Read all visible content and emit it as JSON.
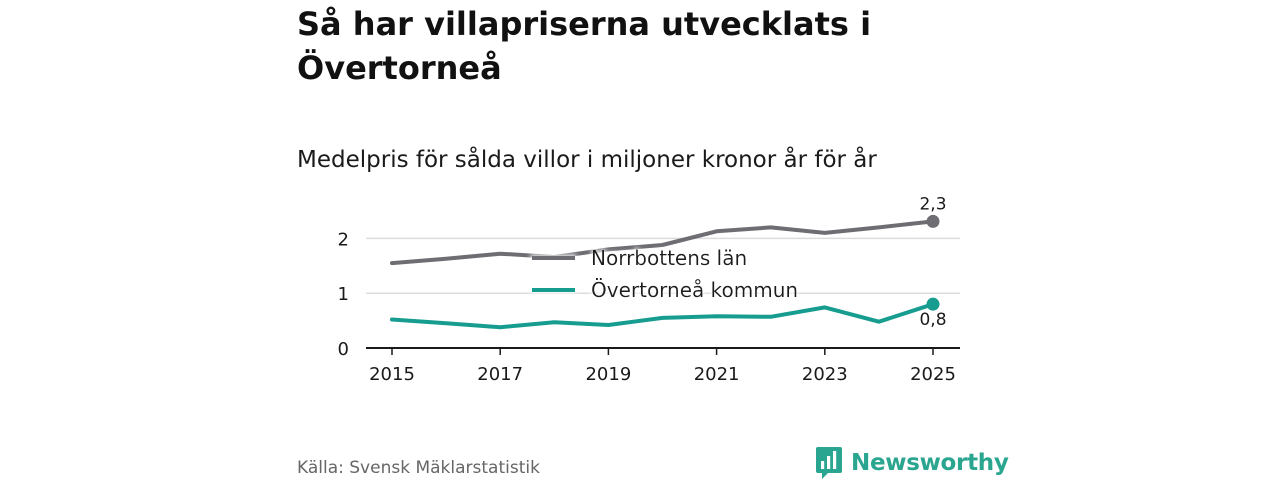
{
  "title": "Så har villapriserna utvecklats i Övertorneå",
  "subtitle": "Medelpris för sålda villor i miljoner kronor år för år",
  "source": "Källa: Svensk Mäklarstatistik",
  "brand": {
    "name": "Newsworthy",
    "icon": "newsworthy-logo-icon",
    "color": "#2aa58f"
  },
  "chart_data": {
    "type": "line",
    "x": [
      2015,
      2016,
      2017,
      2018,
      2019,
      2020,
      2021,
      2022,
      2023,
      2024,
      2025
    ],
    "xticks": [
      "2015",
      "2017",
      "2019",
      "2021",
      "2023",
      "2025"
    ],
    "yticks": [
      "0",
      "1",
      "2"
    ],
    "ylim": [
      0,
      2.5
    ],
    "grid": true,
    "legend_position": "center",
    "series": [
      {
        "name": "Norrbottens län",
        "color": "#6e6d73",
        "values": [
          1.55,
          1.63,
          1.72,
          1.66,
          1.8,
          1.88,
          2.13,
          2.2,
          2.1,
          2.2,
          2.31
        ],
        "end_label": "2,3"
      },
      {
        "name": "Övertorneå kommun",
        "color": "#169d90",
        "values": [
          0.52,
          0.45,
          0.38,
          0.47,
          0.42,
          0.55,
          0.58,
          0.57,
          0.74,
          0.48,
          0.8
        ],
        "end_label": "0,8"
      }
    ]
  }
}
